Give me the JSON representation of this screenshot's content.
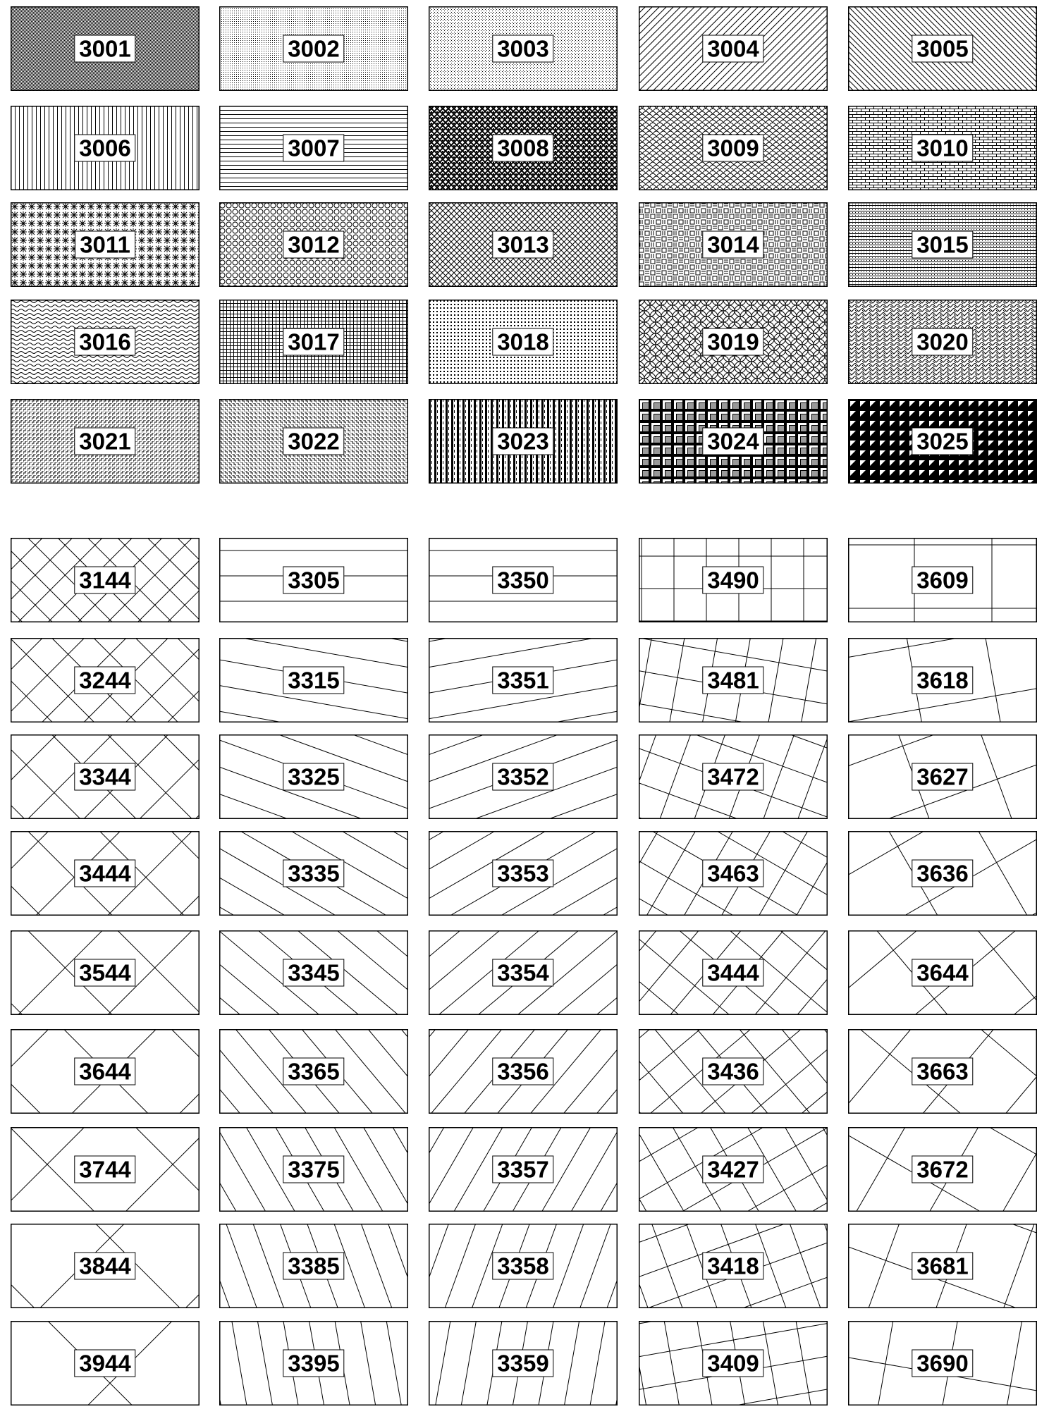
{
  "top_patterns": [
    "3001",
    "3002",
    "3003",
    "3004",
    "3005",
    "3006",
    "3007",
    "3008",
    "3009",
    "3010",
    "3011",
    "3012",
    "3013",
    "3014",
    "3015",
    "3016",
    "3017",
    "3018",
    "3019",
    "3020",
    "3021",
    "3022",
    "3023",
    "3024",
    "3025"
  ],
  "bottom_patterns": [
    "3144",
    "3305",
    "3350",
    "3490",
    "3609",
    "3244",
    "3315",
    "3351",
    "3481",
    "3618",
    "3344",
    "3325",
    "3352",
    "3472",
    "3627",
    "3444",
    "3335",
    "3353",
    "3463",
    "3636",
    "3544",
    "3345",
    "3354",
    "3444",
    "3644",
    "3644",
    "3365",
    "3356",
    "3436",
    "3663",
    "3744",
    "3375",
    "3357",
    "3427",
    "3672",
    "3844",
    "3385",
    "3358",
    "3418",
    "3681",
    "3944",
    "3395",
    "3359",
    "3409",
    "3690"
  ],
  "colors": {
    "ink": "#000000",
    "paper": "#ffffff"
  }
}
